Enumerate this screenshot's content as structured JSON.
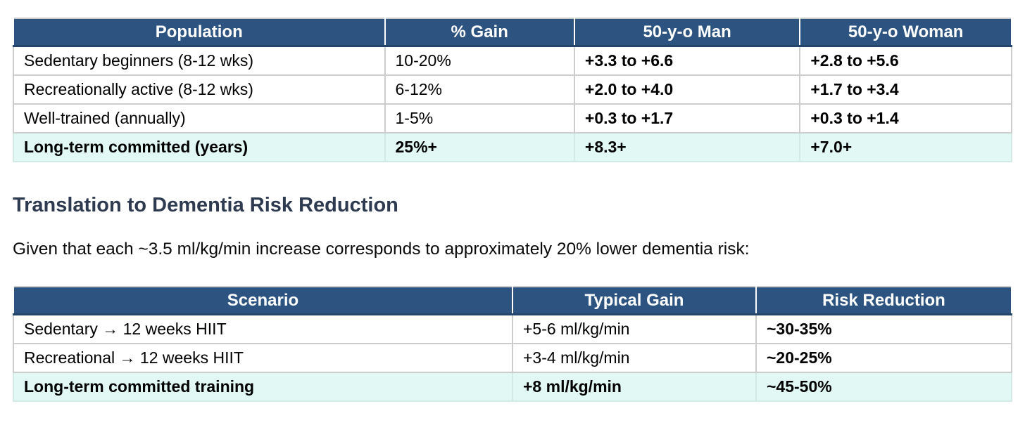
{
  "colors": {
    "header_bg": "#2d5480",
    "header_text": "#ffffff",
    "highlight_row_bg": "#e1f8f4",
    "cell_border": "#cccccc",
    "heading_text": "#2e3a50",
    "body_text": "#000000"
  },
  "table1": {
    "columns": [
      "Population",
      "% Gain",
      "50-y-o Man",
      "50-y-o Woman"
    ],
    "rows": [
      {
        "cells": [
          "Sedentary beginners (8-12 wks)",
          "10-20%",
          "+3.3 to +6.6",
          "+2.8 to +5.6"
        ],
        "highlight": false
      },
      {
        "cells": [
          "Recreationally active (8-12 wks)",
          "6-12%",
          "+2.0 to +4.0",
          "+1.7 to +3.4"
        ],
        "highlight": false
      },
      {
        "cells": [
          "Well-trained (annually)",
          "1-5%",
          "+0.3 to +1.7",
          "+0.3 to +1.4"
        ],
        "highlight": false
      },
      {
        "cells": [
          "Long-term committed (years)",
          "25%+",
          "+8.3+",
          "+7.0+"
        ],
        "highlight": true
      }
    ]
  },
  "heading": {
    "text": "Translation to Dementia Risk Reduction"
  },
  "paragraph": {
    "text": "Given that each ~3.5 ml/kg/min increase corresponds to approximately 20% lower dementia risk:"
  },
  "table2": {
    "columns": [
      "Scenario",
      "Typical Gain",
      "Risk Reduction"
    ],
    "rows": [
      {
        "cells": [
          "Sedentary → 12 weeks HIIT",
          "+5-6 ml/kg/min",
          "~30-35%"
        ],
        "highlight": false
      },
      {
        "cells": [
          "Recreational → 12 weeks HIIT",
          "+3-4 ml/kg/min",
          "~20-25%"
        ],
        "highlight": false
      },
      {
        "cells": [
          "Long-term committed training",
          "+8 ml/kg/min",
          "~45-50%"
        ],
        "highlight": true
      }
    ]
  }
}
